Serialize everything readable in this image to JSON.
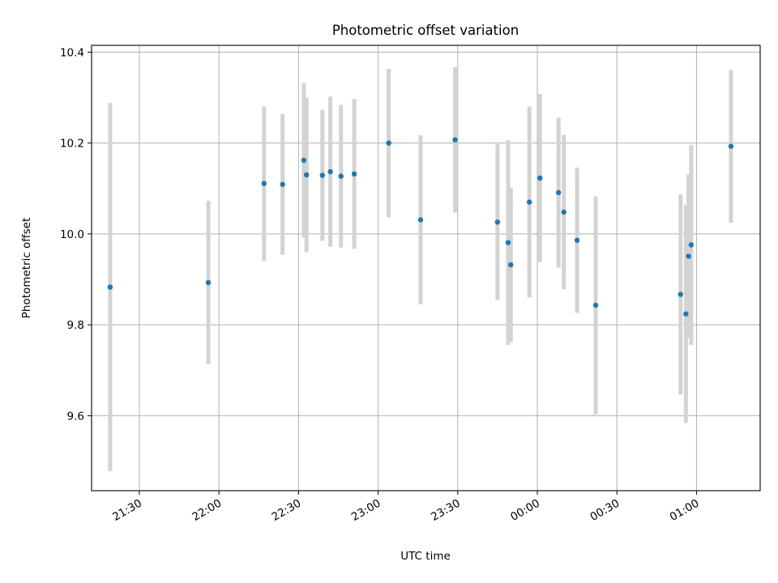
{
  "chart_data": {
    "type": "scatter",
    "title": "Photometric offset variation",
    "xlabel": "UTC time",
    "ylabel": "Photometric offset",
    "x_format": "HH:MM",
    "xlim": [
      "21:12",
      "01:24"
    ],
    "ylim": [
      9.435,
      10.415
    ],
    "grid": true,
    "x_ticks": [
      "21:30",
      "22:00",
      "22:30",
      "23:00",
      "23:30",
      "00:00",
      "00:30",
      "01:00"
    ],
    "y_ticks": [
      9.6,
      9.8,
      10.0,
      10.2,
      10.4
    ],
    "y_tick_labels": [
      "9.6",
      "9.8",
      "10.0",
      "10.2",
      "10.4"
    ],
    "marker_color": "#1f77b4",
    "errorbar_color": "#d3d3d3",
    "points": [
      {
        "x": "21:19",
        "y": 9.883,
        "yerr": 0.405
      },
      {
        "x": "21:56",
        "y": 9.893,
        "yerr": 0.18
      },
      {
        "x": "22:17",
        "y": 10.111,
        "yerr": 0.17
      },
      {
        "x": "22:24",
        "y": 10.109,
        "yerr": 0.155
      },
      {
        "x": "22:32",
        "y": 10.162,
        "yerr": 0.17
      },
      {
        "x": "22:33",
        "y": 10.13,
        "yerr": 0.17
      },
      {
        "x": "22:39",
        "y": 10.129,
        "yerr": 0.144
      },
      {
        "x": "22:42",
        "y": 10.137,
        "yerr": 0.165
      },
      {
        "x": "22:46",
        "y": 10.127,
        "yerr": 0.157
      },
      {
        "x": "22:51",
        "y": 10.132,
        "yerr": 0.165
      },
      {
        "x": "23:04",
        "y": 10.2,
        "yerr": 0.163
      },
      {
        "x": "23:16",
        "y": 10.031,
        "yerr": 0.186
      },
      {
        "x": "23:29",
        "y": 10.207,
        "yerr": 0.16
      },
      {
        "x": "23:45",
        "y": 10.026,
        "yerr": 0.172
      },
      {
        "x": "23:49",
        "y": 9.981,
        "yerr": 0.225
      },
      {
        "x": "23:50",
        "y": 9.932,
        "yerr": 0.17
      },
      {
        "x": "23:57",
        "y": 10.07,
        "yerr": 0.21
      },
      {
        "x": "00:01",
        "y": 10.123,
        "yerr": 0.185
      },
      {
        "x": "00:08",
        "y": 10.091,
        "yerr": 0.165
      },
      {
        "x": "00:10",
        "y": 10.048,
        "yerr": 0.17
      },
      {
        "x": "00:15",
        "y": 9.986,
        "yerr": 0.16
      },
      {
        "x": "00:22",
        "y": 9.843,
        "yerr": 0.24
      },
      {
        "x": "00:54",
        "y": 9.867,
        "yerr": 0.22
      },
      {
        "x": "00:56",
        "y": 9.824,
        "yerr": 0.24
      },
      {
        "x": "00:57",
        "y": 9.951,
        "yerr": 0.18
      },
      {
        "x": "00:58",
        "y": 9.976,
        "yerr": 0.22
      },
      {
        "x": "01:13",
        "y": 10.193,
        "yerr": 0.168
      }
    ]
  }
}
